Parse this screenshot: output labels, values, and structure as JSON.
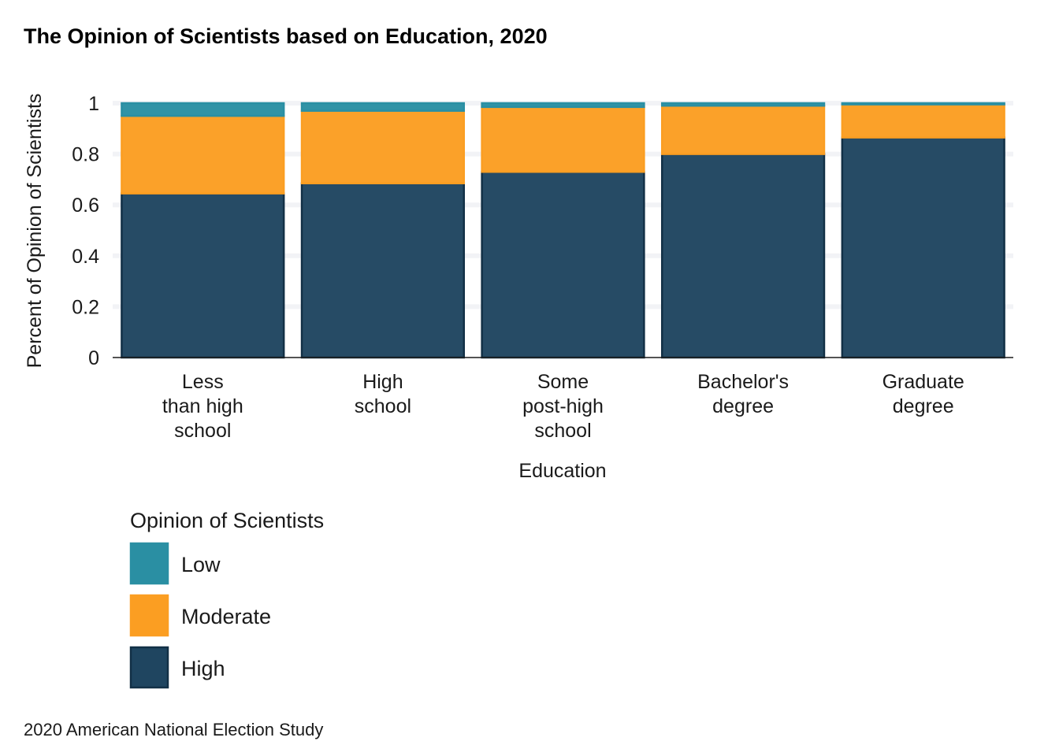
{
  "chart_data": {
    "type": "bar",
    "stacked": true,
    "title": "The Opinion of Scientists based on Education, 2020",
    "xlabel": "Education",
    "ylabel": "Percent of Opinion of Scientists",
    "ylim": [
      0,
      1
    ],
    "yticks": [
      "0",
      "0.2",
      "0.4",
      "0.6",
      "0.8",
      "1"
    ],
    "categories": [
      [
        "Less",
        "than high",
        "school"
      ],
      [
        "High",
        "school"
      ],
      [
        "Some",
        "post-high",
        "school"
      ],
      [
        "Bachelor's",
        "degree"
      ],
      [
        "Graduate",
        "degree"
      ]
    ],
    "series": [
      {
        "name": "High",
        "color": "#1f4560",
        "values": [
          0.645,
          0.685,
          0.73,
          0.8,
          0.865
        ]
      },
      {
        "name": "Moderate",
        "color": "#fb9e22",
        "values": [
          0.305,
          0.285,
          0.255,
          0.19,
          0.13
        ]
      },
      {
        "name": "Low",
        "color": "#2a8fa3",
        "values": [
          0.05,
          0.03,
          0.015,
          0.01,
          0.005
        ]
      }
    ],
    "legend": {
      "title": "Opinion of Scientists",
      "placement": "bottom-left",
      "order": [
        "Low",
        "Moderate",
        "High"
      ]
    },
    "grid": true,
    "caption": "2020 American National Election Study"
  }
}
